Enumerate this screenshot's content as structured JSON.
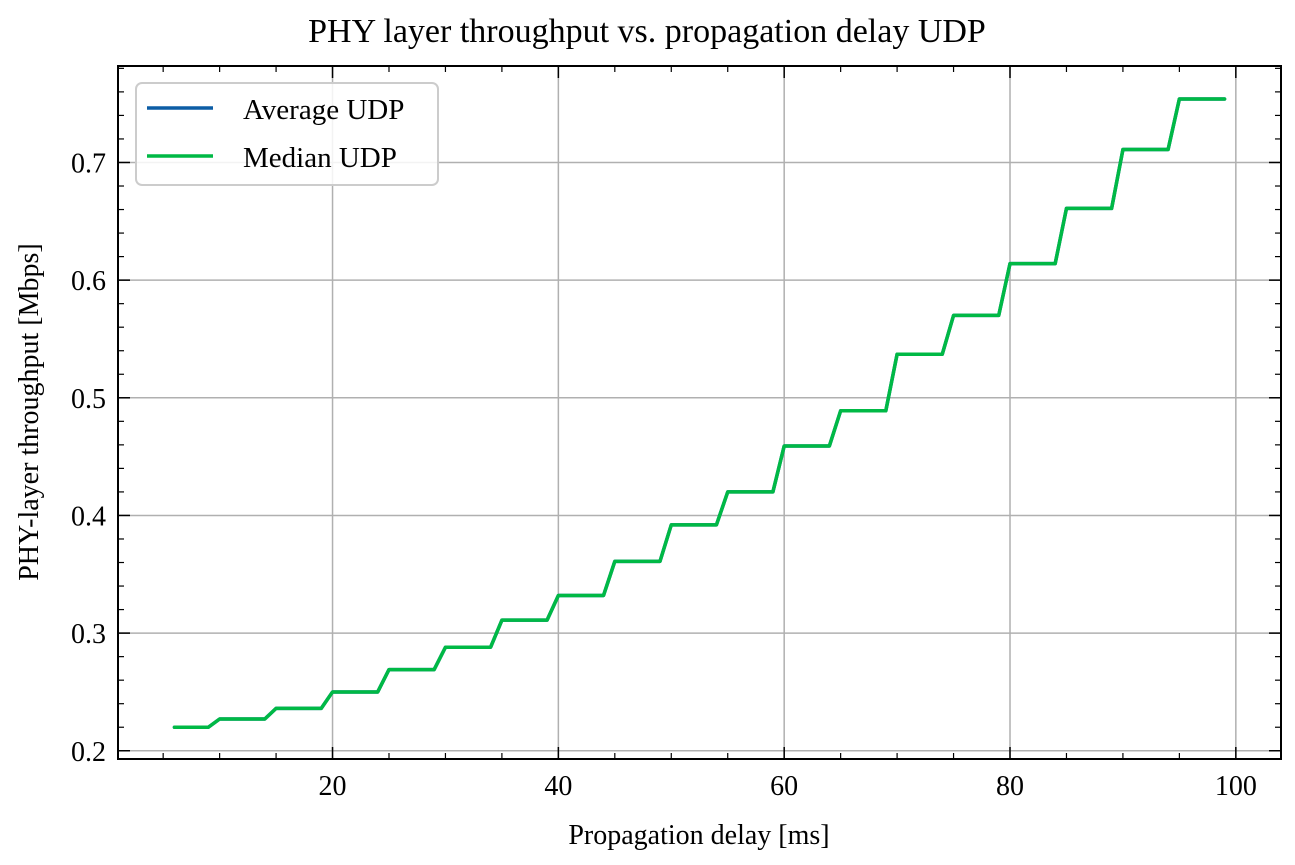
{
  "chart_data": {
    "type": "line",
    "title": "PHY layer throughput vs. propagation delay UDP",
    "xlabel": "Propagation delay [ms]",
    "ylabel": "PHY-layer throughput [Mbps]",
    "xlim": [
      1,
      104
    ],
    "ylim": [
      0.193,
      0.782
    ],
    "x_ticks": [
      20,
      40,
      60,
      80,
      100
    ],
    "x_tick_labels": [
      "20",
      "40",
      "60",
      "80",
      "100"
    ],
    "y_ticks": [
      0.2,
      0.3,
      0.4,
      0.5,
      0.6,
      0.7
    ],
    "y_tick_labels": [
      "0.2",
      "0.3",
      "0.4",
      "0.5",
      "0.6",
      "0.7"
    ],
    "grid": true,
    "legend_position": "top-left",
    "x": [
      6,
      9,
      10,
      14,
      15,
      19,
      20,
      24,
      25,
      29,
      30,
      34,
      35,
      39,
      40,
      44,
      45,
      49,
      50,
      54,
      55,
      59,
      60,
      64,
      65,
      69,
      70,
      74,
      75,
      79,
      80,
      84,
      85,
      89,
      90,
      94,
      95,
      99
    ],
    "series": [
      {
        "name": "Average UDP",
        "color": "#0C5DA5",
        "values": [
          0.22,
          0.22,
          0.227,
          0.227,
          0.236,
          0.236,
          0.25,
          0.25,
          0.269,
          0.269,
          0.288,
          0.288,
          0.311,
          0.311,
          0.332,
          0.332,
          0.361,
          0.361,
          0.392,
          0.392,
          0.42,
          0.42,
          0.459,
          0.459,
          0.489,
          0.489,
          0.537,
          0.537,
          0.57,
          0.57,
          0.614,
          0.614,
          0.661,
          0.661,
          0.711,
          0.711,
          0.754,
          0.754
        ]
      },
      {
        "name": "Median UDP",
        "color": "#00B945",
        "values": [
          0.22,
          0.22,
          0.227,
          0.227,
          0.236,
          0.236,
          0.25,
          0.25,
          0.269,
          0.269,
          0.288,
          0.288,
          0.311,
          0.311,
          0.332,
          0.332,
          0.361,
          0.361,
          0.392,
          0.392,
          0.42,
          0.42,
          0.459,
          0.459,
          0.489,
          0.489,
          0.537,
          0.537,
          0.57,
          0.57,
          0.614,
          0.614,
          0.661,
          0.661,
          0.711,
          0.711,
          0.754,
          0.754
        ]
      }
    ]
  }
}
